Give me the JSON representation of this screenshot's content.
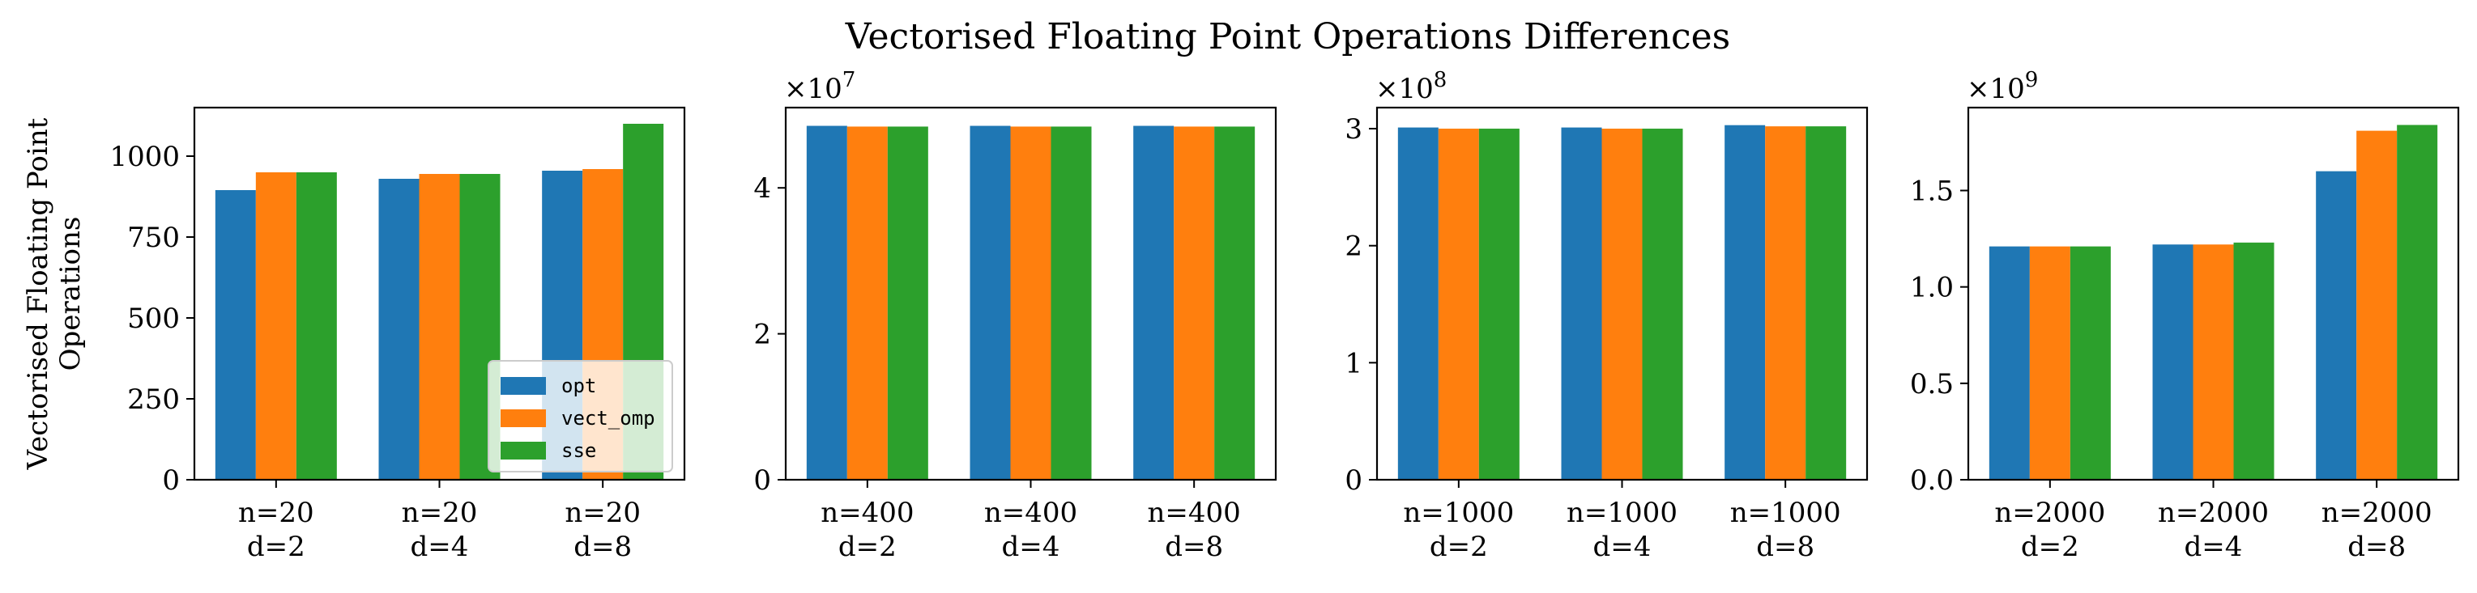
{
  "title": "Vectorised Floating Point Operations Differences",
  "colors": {
    "opt": "#1f77b4",
    "vect_omp": "#ff7f0e",
    "sse": "#2ca02c"
  },
  "legend": {
    "placement": "lower-right",
    "entries": [
      "opt",
      "vect_omp",
      "sse"
    ]
  },
  "chart_data": [
    {
      "type": "bar",
      "ylabel": "Vectorised Floating Point Operations",
      "exponent_label": "",
      "ylim": [
        0,
        1150
      ],
      "yticks": [
        0,
        250,
        500,
        750,
        1000
      ],
      "ytick_labels": [
        "0",
        "250",
        "500",
        "750",
        "1000"
      ],
      "categories": [
        "n=20\nd=2",
        "n=20\nd=4",
        "n=20\nd=8"
      ],
      "series": [
        {
          "name": "opt",
          "values": [
            895,
            930,
            955
          ]
        },
        {
          "name": "vect_omp",
          "values": [
            950,
            945,
            960
          ]
        },
        {
          "name": "sse",
          "values": [
            950,
            945,
            1100
          ]
        }
      ],
      "grid": false
    },
    {
      "type": "bar",
      "ylabel": "",
      "exponent_label": "×10^7",
      "ylim": [
        0,
        5.1
      ],
      "yticks": [
        0,
        2,
        4
      ],
      "ytick_labels": [
        "0",
        "2",
        "4"
      ],
      "categories": [
        "n=400\nd=2",
        "n=400\nd=4",
        "n=400\nd=8"
      ],
      "series": [
        {
          "name": "opt",
          "values": [
            4.85,
            4.85,
            4.85
          ]
        },
        {
          "name": "vect_omp",
          "values": [
            4.84,
            4.84,
            4.84
          ]
        },
        {
          "name": "sse",
          "values": [
            4.84,
            4.84,
            4.84
          ]
        }
      ],
      "grid": false
    },
    {
      "type": "bar",
      "ylabel": "",
      "exponent_label": "×10^8",
      "ylim": [
        0,
        3.18
      ],
      "yticks": [
        0,
        1,
        2,
        3
      ],
      "ytick_labels": [
        "0",
        "1",
        "2",
        "3"
      ],
      "categories": [
        "n=1000\nd=2",
        "n=1000\nd=4",
        "n=1000\nd=8"
      ],
      "series": [
        {
          "name": "opt",
          "values": [
            3.01,
            3.01,
            3.03
          ]
        },
        {
          "name": "vect_omp",
          "values": [
            3.0,
            3.0,
            3.02
          ]
        },
        {
          "name": "sse",
          "values": [
            3.0,
            3.0,
            3.02
          ]
        }
      ],
      "grid": false
    },
    {
      "type": "bar",
      "ylabel": "",
      "exponent_label": "×10^9",
      "ylim": [
        0,
        1.93
      ],
      "yticks": [
        0,
        0.5,
        1.0,
        1.5
      ],
      "ytick_labels": [
        "0.0",
        "0.5",
        "1.0",
        "1.5"
      ],
      "categories": [
        "n=2000\nd=2",
        "n=2000\nd=4",
        "n=2000\nd=8"
      ],
      "series": [
        {
          "name": "opt",
          "values": [
            1.21,
            1.22,
            1.6
          ]
        },
        {
          "name": "vect_omp",
          "values": [
            1.21,
            1.22,
            1.81
          ]
        },
        {
          "name": "sse",
          "values": [
            1.21,
            1.23,
            1.84
          ]
        }
      ],
      "grid": false
    }
  ]
}
